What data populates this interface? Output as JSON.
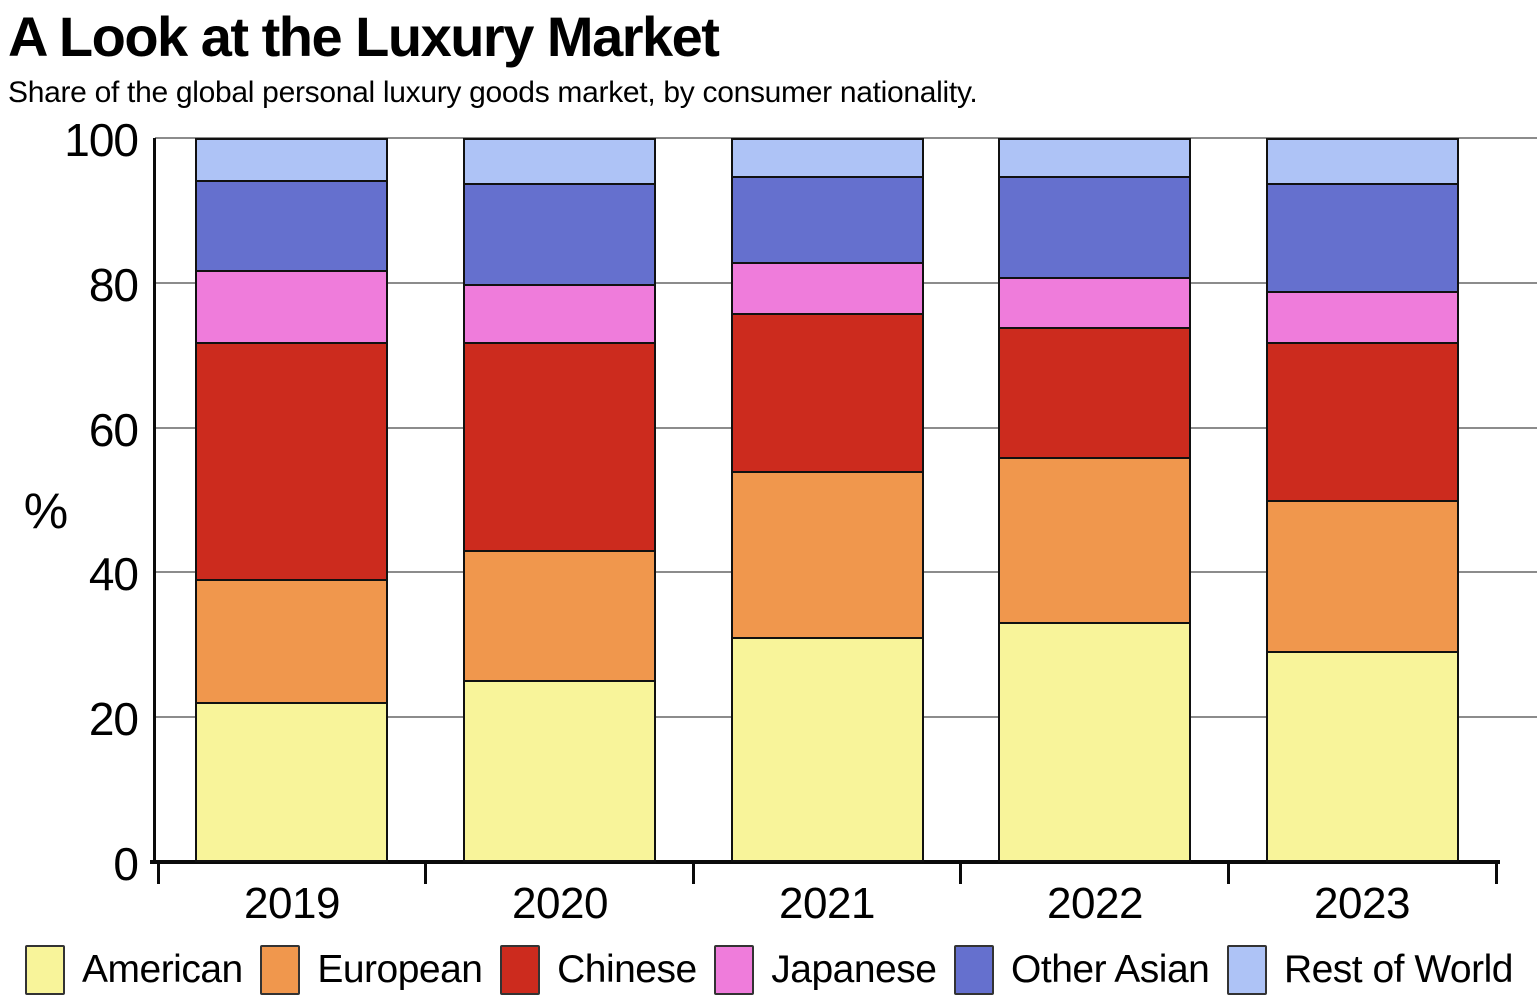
{
  "chart_data": {
    "type": "bar",
    "stacked": true,
    "title": "A Look at the Luxury Market",
    "subtitle": "Share of the global personal luxury goods market, by consumer nationality.",
    "categories": [
      "2019",
      "2020",
      "2021",
      "2022",
      "2023"
    ],
    "series": [
      {
        "name": "American",
        "color": "#F8F49A",
        "values": [
          22,
          25,
          31,
          33,
          29
        ]
      },
      {
        "name": "European",
        "color": "#F0974D",
        "values": [
          17,
          18,
          23,
          23,
          21
        ]
      },
      {
        "name": "Chinese",
        "color": "#CC2B1E",
        "values": [
          33,
          29,
          22,
          18,
          22
        ]
      },
      {
        "name": "Japanese",
        "color": "#EF7CDB",
        "values": [
          10,
          8,
          7,
          7,
          7
        ]
      },
      {
        "name": "Other Asian",
        "color": "#6570CE",
        "values": [
          12.5,
          14,
          12,
          14,
          15
        ]
      },
      {
        "name": "Rest of World",
        "color": "#AEC3F6",
        "values": [
          5.5,
          6,
          5,
          5,
          6
        ]
      }
    ],
    "ylabel": "%",
    "ylim": [
      0,
      100
    ],
    "yticks": [
      0,
      20,
      40,
      60,
      80,
      100
    ],
    "grid": true,
    "gridline_color": "#8c8c8c",
    "bar_border_color": "#111111",
    "legend_position": "bottom"
  }
}
